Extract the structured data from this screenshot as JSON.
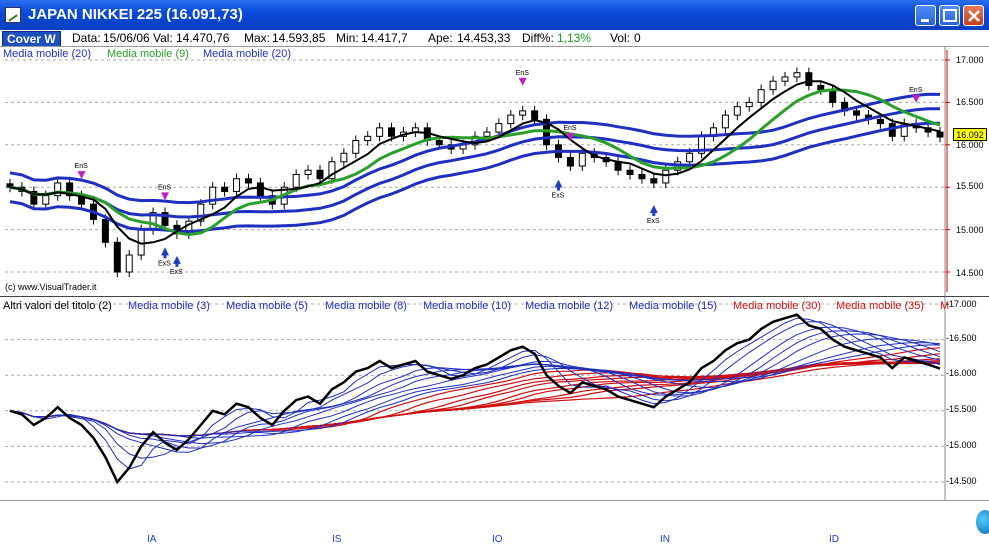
{
  "window": {
    "title": "JAPAN NIKKEI 225 (16.091,73)"
  },
  "info": {
    "cover_label": "Cover W",
    "data_label": "Data:",
    "data_value": "15/06/06",
    "val_label": "Val:",
    "val_value": "14.470,76",
    "max_label": "Max:",
    "max_value": "14.593,85",
    "min_label": "Min:",
    "min_value": "14.417,7",
    "ape_label": "Ape:",
    "ape_value": "14.453,33",
    "diff_label": "Diff%:",
    "diff_value": "1,13%",
    "vol_label": "Vol:",
    "vol_value": "0"
  },
  "upper_legend": [
    {
      "label": "Media mobile (20)",
      "color": "#1f2fbf"
    },
    {
      "label": "Media mobile (9)",
      "color": "#2aa02a"
    },
    {
      "label": "Media mobile (20)",
      "color": "#1f2fbf"
    }
  ],
  "lower_legend": [
    {
      "label": "Altri valori del titolo (2)",
      "color": "#000000"
    },
    {
      "label": "Media mobile (3)",
      "color": "#1f2fbf"
    },
    {
      "label": "Media mobile (5)",
      "color": "#1f2fbf"
    },
    {
      "label": "Media mobile (8)",
      "color": "#1f2fbf"
    },
    {
      "label": "Media mobile (10)",
      "color": "#1f2fbf"
    },
    {
      "label": "Media mobile (12)",
      "color": "#1f2fbf"
    },
    {
      "label": "Media mobile (15)",
      "color": "#1f2fbf"
    },
    {
      "label": "Media mobile (30)",
      "color": "#d01010"
    },
    {
      "label": "Media mobile (35)",
      "color": "#d01010"
    },
    {
      "label": "M",
      "color": "#d01010"
    }
  ],
  "upper_axis": [
    "17.000",
    "16.500",
    "16.092",
    "16.000",
    "15.500",
    "15.000",
    "14.500"
  ],
  "lower_axis": [
    "-17.000",
    "-16.500",
    "-16.000",
    "-15.500",
    "-15.000",
    "-14.500"
  ],
  "price_tag": "16.092",
  "copyright": "(c) www.VisualTrader.it",
  "signals": {
    "ens": "EnS",
    "exs": "ExS"
  },
  "months": [
    "IA",
    "IS",
    "IO",
    "IN",
    "ID"
  ],
  "chart_data": {
    "type": "line",
    "title": "JAPAN NIKKEI 225 (16.091,73)",
    "upper": {
      "ylim": [
        14300,
        17100
      ],
      "close": [
        15500,
        15450,
        15300,
        15400,
        15550,
        15400,
        15300,
        15120,
        14850,
        14500,
        14700,
        15000,
        15200,
        15050,
        14950,
        15100,
        15300,
        15500,
        15450,
        15600,
        15550,
        15400,
        15300,
        15500,
        15650,
        15700,
        15600,
        15800,
        15900,
        16050,
        16100,
        16200,
        16100,
        16150,
        16200,
        16050,
        16000,
        15950,
        16000,
        16100,
        16150,
        16250,
        16350,
        16400,
        16300,
        16000,
        15850,
        15750,
        15900,
        15850,
        15800,
        15700,
        15650,
        15600,
        15550,
        15700,
        15800,
        15900,
        16100,
        16200,
        16350,
        16450,
        16500,
        16650,
        16750,
        16800,
        16850,
        16700,
        16650,
        16500,
        16400,
        16350,
        16300,
        16250,
        16100,
        16250,
        16200,
        16150,
        16092
      ],
      "ma9_color": "#2aa02a",
      "ma20_color": "#1f2fbf",
      "grid": true
    },
    "lower": {
      "ylim": [
        14300,
        17100
      ],
      "series_colors": {
        "price": "#000000",
        "short_ma": "#1f2fbf",
        "long_ma": "#d01010"
      }
    }
  }
}
